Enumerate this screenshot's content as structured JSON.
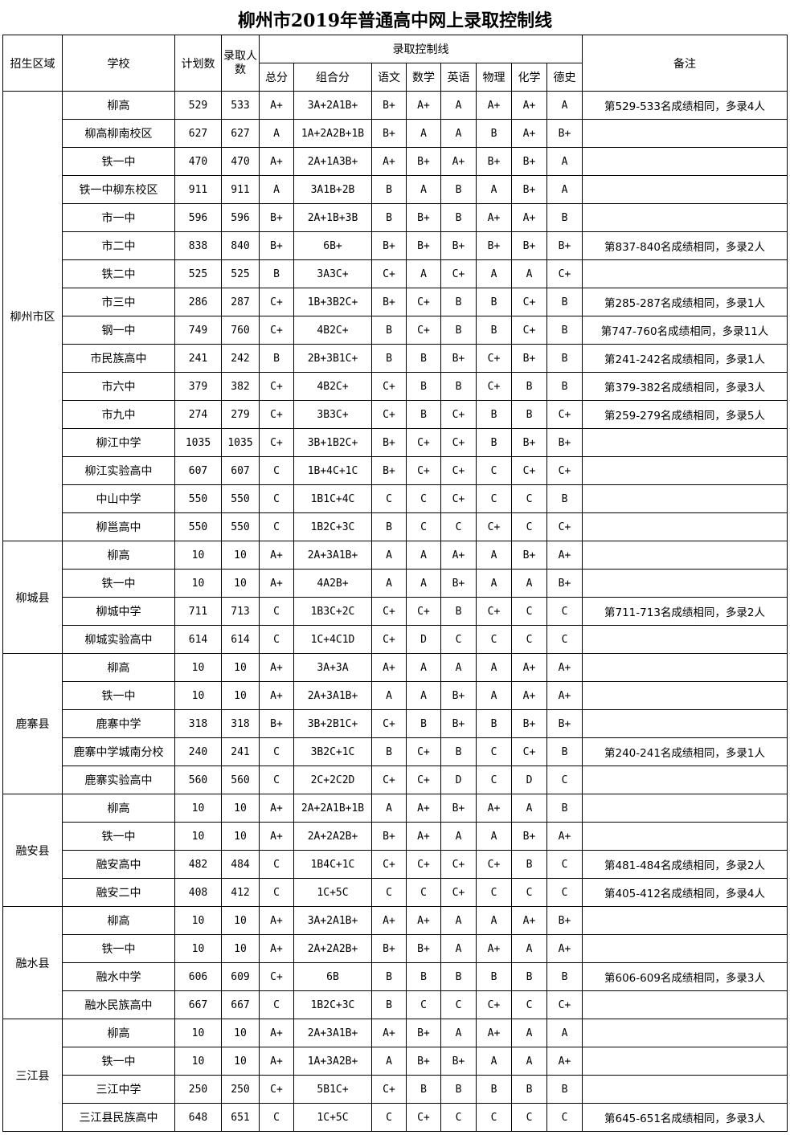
{
  "title": "柳州市2019年普通高中网上录取控制线",
  "headers": {
    "region": "招生区域",
    "school": "学校",
    "plan": "计划数",
    "admitted": "录取人数",
    "control_line": "录取控制线",
    "note": "备注",
    "subjects": [
      "总分",
      "组合分",
      "语文",
      "数学",
      "英语",
      "物理",
      "化学",
      "德史"
    ]
  },
  "regions": [
    {
      "name": "柳州市区",
      "rows": [
        [
          "柳高",
          "529",
          "533",
          "A+",
          "3A+2A1B+",
          "B+",
          "A+",
          "A",
          "A+",
          "A+",
          "A",
          "第529-533名成绩相同，多录4人"
        ],
        [
          "柳高柳南校区",
          "627",
          "627",
          "A",
          "1A+2A2B+1B",
          "B+",
          "A",
          "A",
          "B",
          "A+",
          "B+",
          ""
        ],
        [
          "铁一中",
          "470",
          "470",
          "A+",
          "2A+1A3B+",
          "A+",
          "B+",
          "A+",
          "B+",
          "B+",
          "A",
          ""
        ],
        [
          "铁一中柳东校区",
          "911",
          "911",
          "A",
          "3A1B+2B",
          "B",
          "A",
          "B",
          "A",
          "B+",
          "A",
          ""
        ],
        [
          "市一中",
          "596",
          "596",
          "B+",
          "2A+1B+3B",
          "B",
          "B+",
          "B",
          "A+",
          "A+",
          "B",
          ""
        ],
        [
          "市二中",
          "838",
          "840",
          "B+",
          "6B+",
          "B+",
          "B+",
          "B+",
          "B+",
          "B+",
          "B+",
          "第837-840名成绩相同，多录2人"
        ],
        [
          "铁二中",
          "525",
          "525",
          "B",
          "3A3C+",
          "C+",
          "A",
          "C+",
          "A",
          "A",
          "C+",
          ""
        ],
        [
          "市三中",
          "286",
          "287",
          "C+",
          "1B+3B2C+",
          "B+",
          "C+",
          "B",
          "B",
          "C+",
          "B",
          "第285-287名成绩相同，多录1人"
        ],
        [
          "钢一中",
          "749",
          "760",
          "C+",
          "4B2C+",
          "B",
          "C+",
          "B",
          "B",
          "C+",
          "B",
          "第747-760名成绩相同，多录11人"
        ],
        [
          "市民族高中",
          "241",
          "242",
          "B",
          "2B+3B1C+",
          "B",
          "B",
          "B+",
          "C+",
          "B+",
          "B",
          "第241-242名成绩相同，多录1人"
        ],
        [
          "市六中",
          "379",
          "382",
          "C+",
          "4B2C+",
          "C+",
          "B",
          "B",
          "C+",
          "B",
          "B",
          "第379-382名成绩相同，多录3人"
        ],
        [
          "市九中",
          "274",
          "279",
          "C+",
          "3B3C+",
          "C+",
          "B",
          "C+",
          "B",
          "B",
          "C+",
          "第259-279名成绩相同，多录5人"
        ],
        [
          "柳江中学",
          "1035",
          "1035",
          "C+",
          "3B+1B2C+",
          "B+",
          "C+",
          "C+",
          "B",
          "B+",
          "B+",
          ""
        ],
        [
          "柳江实验高中",
          "607",
          "607",
          "C",
          "1B+4C+1C",
          "B+",
          "C+",
          "C+",
          "C",
          "C+",
          "C+",
          ""
        ],
        [
          "中山中学",
          "550",
          "550",
          "C",
          "1B1C+4C",
          "C",
          "C",
          "C+",
          "C",
          "C",
          "B",
          ""
        ],
        [
          "柳邕高中",
          "550",
          "550",
          "C",
          "1B2C+3C",
          "B",
          "C",
          "C",
          "C+",
          "C",
          "C+",
          ""
        ]
      ]
    },
    {
      "name": "柳城县",
      "rows": [
        [
          "柳高",
          "10",
          "10",
          "A+",
          "2A+3A1B+",
          "A",
          "A",
          "A+",
          "A",
          "B+",
          "A+",
          ""
        ],
        [
          "铁一中",
          "10",
          "10",
          "A+",
          "4A2B+",
          "A",
          "A",
          "B+",
          "A",
          "A",
          "B+",
          ""
        ],
        [
          "柳城中学",
          "711",
          "713",
          "C",
          "1B3C+2C",
          "C+",
          "C+",
          "B",
          "C+",
          "C",
          "C",
          "第711-713名成绩相同，多录2人"
        ],
        [
          "柳城实验高中",
          "614",
          "614",
          "C",
          "1C+4C1D",
          "C+",
          "D",
          "C",
          "C",
          "C",
          "C",
          ""
        ]
      ]
    },
    {
      "name": "鹿寨县",
      "rows": [
        [
          "柳高",
          "10",
          "10",
          "A+",
          "3A+3A",
          "A+",
          "A",
          "A",
          "A",
          "A+",
          "A+",
          ""
        ],
        [
          "铁一中",
          "10",
          "10",
          "A+",
          "2A+3A1B+",
          "A",
          "A",
          "B+",
          "A",
          "A+",
          "A+",
          ""
        ],
        [
          "鹿寨中学",
          "318",
          "318",
          "B+",
          "3B+2B1C+",
          "C+",
          "B",
          "B+",
          "B",
          "B+",
          "B+",
          ""
        ],
        [
          "鹿寨中学城南分校",
          "240",
          "241",
          "C",
          "3B2C+1C",
          "B",
          "C+",
          "B",
          "C",
          "C+",
          "B",
          "第240-241名成绩相同，多录1人"
        ],
        [
          "鹿寨实验高中",
          "560",
          "560",
          "C",
          "2C+2C2D",
          "C+",
          "C+",
          "D",
          "C",
          "D",
          "C",
          ""
        ]
      ]
    },
    {
      "name": "融安县",
      "rows": [
        [
          "柳高",
          "10",
          "10",
          "A+",
          "2A+2A1B+1B",
          "A",
          "A+",
          "B+",
          "A+",
          "A",
          "B",
          ""
        ],
        [
          "铁一中",
          "10",
          "10",
          "A+",
          "2A+2A2B+",
          "B+",
          "A+",
          "A",
          "A",
          "B+",
          "A+",
          ""
        ],
        [
          "融安高中",
          "482",
          "484",
          "C",
          "1B4C+1C",
          "C+",
          "C+",
          "C+",
          "C+",
          "B",
          "C",
          "第481-484名成绩相同，多录2人"
        ],
        [
          "融安二中",
          "408",
          "412",
          "C",
          "1C+5C",
          "C",
          "C",
          "C+",
          "C",
          "C",
          "C",
          "第405-412名成绩相同，多录4人"
        ]
      ]
    },
    {
      "name": "融水县",
      "rows": [
        [
          "柳高",
          "10",
          "10",
          "A+",
          "3A+2A1B+",
          "A+",
          "A+",
          "A",
          "A",
          "A+",
          "B+",
          ""
        ],
        [
          "铁一中",
          "10",
          "10",
          "A+",
          "2A+2A2B+",
          "B+",
          "B+",
          "A",
          "A+",
          "A",
          "A+",
          ""
        ],
        [
          "融水中学",
          "606",
          "609",
          "C+",
          "6B",
          "B",
          "B",
          "B",
          "B",
          "B",
          "B",
          "第606-609名成绩相同，多录3人"
        ],
        [
          "融水民族高中",
          "667",
          "667",
          "C",
          "1B2C+3C",
          "B",
          "C",
          "C",
          "C+",
          "C",
          "C+",
          ""
        ]
      ]
    },
    {
      "name": "三江县",
      "rows": [
        [
          "柳高",
          "10",
          "10",
          "A+",
          "2A+3A1B+",
          "A+",
          "B+",
          "A",
          "A+",
          "A",
          "A",
          ""
        ],
        [
          "铁一中",
          "10",
          "10",
          "A+",
          "1A+3A2B+",
          "A",
          "B+",
          "B+",
          "A",
          "A",
          "A+",
          ""
        ],
        [
          "三江中学",
          "250",
          "250",
          "C+",
          "5B1C+",
          "C+",
          "B",
          "B",
          "B",
          "B",
          "B",
          ""
        ],
        [
          "三江县民族高中",
          "648",
          "651",
          "C",
          "1C+5C",
          "C",
          "C+",
          "C",
          "C",
          "C",
          "C",
          "第645-651名成绩相同，多录3人"
        ]
      ]
    }
  ]
}
